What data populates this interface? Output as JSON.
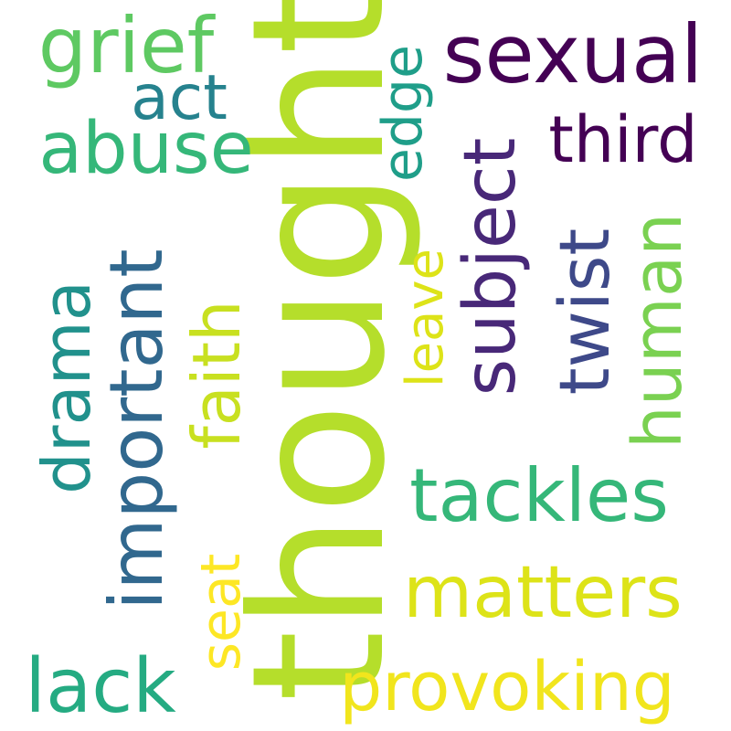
{
  "title": "Word cloud",
  "words": [
    {
      "key": "thought",
      "text": "thought",
      "color": "#b5de2b"
    },
    {
      "key": "sexual",
      "text": "sexual",
      "color": "#440154"
    },
    {
      "key": "grief",
      "text": "grief",
      "color": "#5ec962"
    },
    {
      "key": "act",
      "text": "act",
      "color": "#26828e"
    },
    {
      "key": "abuse",
      "text": "abuse",
      "color": "#35b779"
    },
    {
      "key": "edge",
      "text": "edge",
      "color": "#1f9e89"
    },
    {
      "key": "third",
      "text": "third",
      "color": "#440154"
    },
    {
      "key": "subject",
      "text": "subject",
      "color": "#482878"
    },
    {
      "key": "twist",
      "text": "twist",
      "color": "#3e4989"
    },
    {
      "key": "human",
      "text": "human",
      "color": "#7ad151"
    },
    {
      "key": "leave",
      "text": "leave",
      "color": "#dde318"
    },
    {
      "key": "faith",
      "text": "faith",
      "color": "#c8e020"
    },
    {
      "key": "important",
      "text": "important",
      "color": "#31688e"
    },
    {
      "key": "drama",
      "text": "drama",
      "color": "#21918c"
    },
    {
      "key": "tackles",
      "text": "tackles",
      "color": "#35b779"
    },
    {
      "key": "matters",
      "text": "matters",
      "color": "#dde318"
    },
    {
      "key": "seat",
      "text": "seat",
      "color": "#fde725"
    },
    {
      "key": "lack",
      "text": "lack",
      "color": "#25ab82"
    },
    {
      "key": "provoking",
      "text": "provoking",
      "color": "#f1e51d"
    }
  ]
}
